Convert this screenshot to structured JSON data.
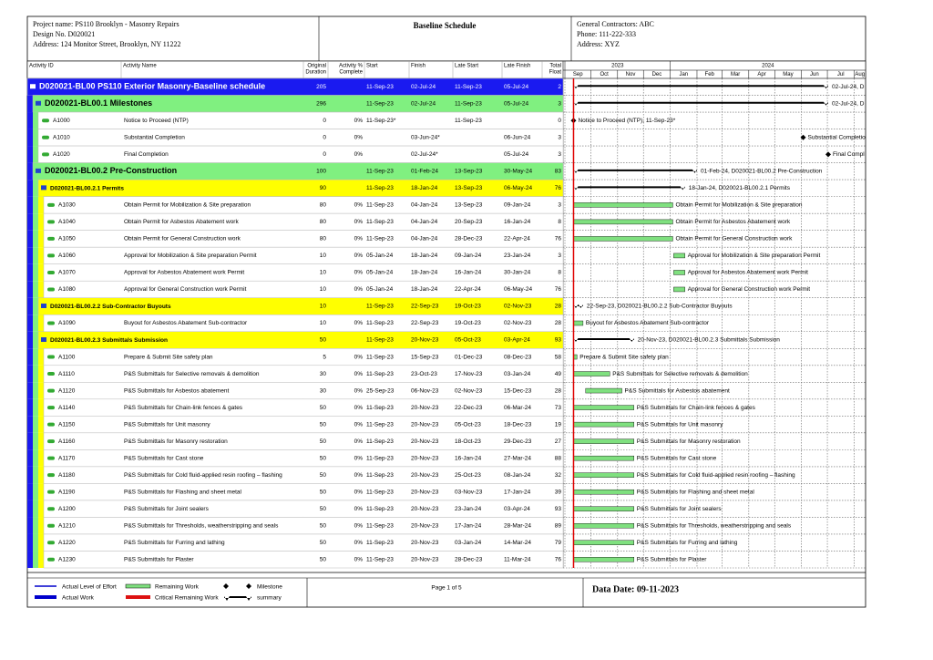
{
  "header": {
    "project_name": "Project name: PS110 Brooklyn - Masonry Repairs",
    "design": "Design No. D020021",
    "address": "Address: 124 Monitor Street, Brooklyn, NY 11222",
    "title": "Baseline Schedule",
    "contractor": "General Contractors: ABC",
    "phone": "Phone: 111-222-333",
    "contractor_address": "Address: XYZ"
  },
  "columns": [
    [
      "Activity ID"
    ],
    [
      "Activity Name"
    ],
    [
      "Original",
      "Duration"
    ],
    [
      "Activity %",
      "Complete"
    ],
    [
      "Start"
    ],
    [
      "Finish"
    ],
    [
      "Late Start"
    ],
    [
      "Late Finish"
    ],
    [
      "Total",
      "Float"
    ]
  ],
  "timeline": {
    "years": [
      "2023",
      "2024"
    ],
    "months": [
      "Sep",
      "Oct",
      "Nov",
      "Dec",
      "Jan",
      "Feb",
      "Mar",
      "Apr",
      "May",
      "Jun",
      "Jul",
      "Aug"
    ]
  },
  "rows": [
    {
      "kind": "project",
      "id": "D020021-BL00",
      "name": "PS110 Exterior Masonry-Baseline schedule",
      "duration": 205,
      "start": "11-Sep-23",
      "finish": "02-Jul-24",
      "late_start": "11-Sep-23",
      "late_finish": "05-Jul-24",
      "float": 2,
      "bar_label": "02-Jul-24, D"
    },
    {
      "kind": "wbs",
      "id": "D020021-BL00.1",
      "name": "Milestones",
      "duration": 296,
      "start": "11-Sep-23",
      "finish": "02-Jul-24",
      "late_start": "11-Sep-23",
      "late_finish": "05-Jul-24",
      "float": 3,
      "bar_label": "02-Jul-24, D"
    },
    {
      "kind": "milestone",
      "id": "A1000",
      "name": "Notice to Proceed (NTP)",
      "duration": 0,
      "pct": "0%",
      "start": "11-Sep-23*",
      "late_start": "11-Sep-23",
      "float": 0,
      "bar_label": "Notice to Proceed (NTP), 11-Sep-23*"
    },
    {
      "kind": "milestone",
      "id": "A1010",
      "name": "Substantial Completion",
      "duration": 0,
      "pct": "0%",
      "finish": "03-Jun-24*",
      "late_finish": "06-Jun-24",
      "float": 3,
      "bar_label": "Substantial Completio"
    },
    {
      "kind": "milestone",
      "id": "A1020",
      "name": "Final Completion",
      "duration": 0,
      "pct": "0%",
      "finish": "02-Jul-24*",
      "late_finish": "05-Jul-24",
      "float": 3,
      "bar_label": "Final Compl"
    },
    {
      "kind": "wbs",
      "id": "D020021-BL00.2",
      "name": "Pre-Construction",
      "duration": 100,
      "start": "11-Sep-23",
      "finish": "01-Feb-24",
      "late_start": "13-Sep-23",
      "late_finish": "30-May-24",
      "float": 83,
      "bar_label": "01-Feb-24, D020021-BL00.2 Pre-Construction"
    },
    {
      "kind": "wbs2",
      "id": "D020021-BL00.2.1",
      "name": "Permits",
      "duration": 90,
      "start": "11-Sep-23",
      "finish": "18-Jan-24",
      "late_start": "13-Sep-23",
      "late_finish": "06-May-24",
      "float": 76,
      "bar_label": "18-Jan-24, D020021-BL00.2.1 Permits"
    },
    {
      "kind": "task",
      "id": "A1030",
      "name": "Obtain Permit for Mobilization & Site preparation",
      "duration": 80,
      "pct": "0%",
      "start": "11-Sep-23",
      "finish": "04-Jan-24",
      "late_start": "13-Sep-23",
      "late_finish": "09-Jan-24",
      "float": 3
    },
    {
      "kind": "task",
      "id": "A1040",
      "name": "Obtain Permit for Asbestos Abatement work",
      "duration": 80,
      "pct": "0%",
      "start": "11-Sep-23",
      "finish": "04-Jan-24",
      "late_start": "20-Sep-23",
      "late_finish": "16-Jan-24",
      "float": 8
    },
    {
      "kind": "task",
      "id": "A1050",
      "name": "Obtain Permit for General Construction work",
      "duration": 80,
      "pct": "0%",
      "start": "11-Sep-23",
      "finish": "04-Jan-24",
      "late_start": "28-Dec-23",
      "late_finish": "22-Apr-24",
      "float": 76
    },
    {
      "kind": "task",
      "id": "A1060",
      "name": "Approval for Mobilization & Site preparation Permit",
      "duration": 10,
      "pct": "0%",
      "start": "05-Jan-24",
      "finish": "18-Jan-24",
      "late_start": "09-Jan-24",
      "late_finish": "23-Jan-24",
      "float": 3
    },
    {
      "kind": "task",
      "id": "A1070",
      "name": "Approval for Asbestos Abatement work Permit",
      "duration": 10,
      "pct": "0%",
      "start": "05-Jan-24",
      "finish": "18-Jan-24",
      "late_start": "16-Jan-24",
      "late_finish": "30-Jan-24",
      "float": 8
    },
    {
      "kind": "task",
      "id": "A1080",
      "name": "Approval for General Construction work Permit",
      "duration": 10,
      "pct": "0%",
      "start": "05-Jan-24",
      "finish": "18-Jan-24",
      "late_start": "22-Apr-24",
      "late_finish": "06-May-24",
      "float": 76
    },
    {
      "kind": "wbs2",
      "id": "D020021-BL00.2.2",
      "name": "Sub-Contractor Buyouts",
      "duration": 10,
      "start": "11-Sep-23",
      "finish": "22-Sep-23",
      "late_start": "19-Oct-23",
      "late_finish": "02-Nov-23",
      "float": 28,
      "bar_label": "22-Sep-23, D020021-BL00.2.2 Sub-Contractor Buyouts"
    },
    {
      "kind": "task",
      "id": "A1090",
      "name": "Buyout for Asbestos Abatement Sub-contractor",
      "duration": 10,
      "pct": "0%",
      "start": "11-Sep-23",
      "finish": "22-Sep-23",
      "late_start": "19-Oct-23",
      "late_finish": "02-Nov-23",
      "float": 28
    },
    {
      "kind": "wbs2",
      "id": "D020021-BL00.2.3",
      "name": "Submittals Submission",
      "duration": 50,
      "start": "11-Sep-23",
      "finish": "20-Nov-23",
      "late_start": "05-Oct-23",
      "late_finish": "03-Apr-24",
      "float": 93,
      "bar_label": "20-Nov-23, D020021-BL00.2.3 Submittals Submission"
    },
    {
      "kind": "task",
      "id": "A1100",
      "name": "Prepare & Submit Site safety plan",
      "duration": 5,
      "pct": "0%",
      "start": "11-Sep-23",
      "finish": "15-Sep-23",
      "late_start": "01-Dec-23",
      "late_finish": "08-Dec-23",
      "float": 58
    },
    {
      "kind": "task",
      "id": "A1110",
      "name": "P&S Submittals for Selective removals & demolition",
      "duration": 30,
      "pct": "0%",
      "start": "11-Sep-23",
      "finish": "23-Oct-23",
      "late_start": "17-Nov-23",
      "late_finish": "03-Jan-24",
      "float": 49
    },
    {
      "kind": "task",
      "id": "A1120",
      "name": "P&S Submittals for Asbestos abatement",
      "duration": 30,
      "pct": "0%",
      "start": "25-Sep-23",
      "finish": "06-Nov-23",
      "late_start": "02-Nov-23",
      "late_finish": "15-Dec-23",
      "float": 28
    },
    {
      "kind": "task",
      "id": "A1140",
      "name": "P&S Submittals for Chain-link fences & gates",
      "duration": 50,
      "pct": "0%",
      "start": "11-Sep-23",
      "finish": "20-Nov-23",
      "late_start": "22-Dec-23",
      "late_finish": "06-Mar-24",
      "float": 73
    },
    {
      "kind": "task",
      "id": "A1150",
      "name": "P&S Submittals for Unit masonry",
      "duration": 50,
      "pct": "0%",
      "start": "11-Sep-23",
      "finish": "20-Nov-23",
      "late_start": "05-Oct-23",
      "late_finish": "18-Dec-23",
      "float": 19
    },
    {
      "kind": "task",
      "id": "A1160",
      "name": "P&S Submittals for Masonry restoration",
      "duration": 50,
      "pct": "0%",
      "start": "11-Sep-23",
      "finish": "20-Nov-23",
      "late_start": "18-Oct-23",
      "late_finish": "29-Dec-23",
      "float": 27
    },
    {
      "kind": "task",
      "id": "A1170",
      "name": "P&S Submittals for Cast stone",
      "duration": 50,
      "pct": "0%",
      "start": "11-Sep-23",
      "finish": "20-Nov-23",
      "late_start": "16-Jan-24",
      "late_finish": "27-Mar-24",
      "float": 88
    },
    {
      "kind": "task",
      "id": "A1180",
      "name": "P&S Submittals for Cold fluid-applied resin roofing – flashing",
      "duration": 50,
      "pct": "0%",
      "start": "11-Sep-23",
      "finish": "20-Nov-23",
      "late_start": "25-Oct-23",
      "late_finish": "08-Jan-24",
      "float": 32
    },
    {
      "kind": "task",
      "id": "A1190",
      "name": "P&S Submittals for Flashing and sheet metal",
      "duration": 50,
      "pct": "0%",
      "start": "11-Sep-23",
      "finish": "20-Nov-23",
      "late_start": "03-Nov-23",
      "late_finish": "17-Jan-24",
      "float": 39
    },
    {
      "kind": "task",
      "id": "A1200",
      "name": "P&S Submittals for Joint sealers",
      "duration": 50,
      "pct": "0%",
      "start": "11-Sep-23",
      "finish": "20-Nov-23",
      "late_start": "23-Jan-24",
      "late_finish": "03-Apr-24",
      "float": 93
    },
    {
      "kind": "task",
      "id": "A1210",
      "name": "P&S Submittals for Thresholds, weatherstripping and seals",
      "duration": 50,
      "pct": "0%",
      "start": "11-Sep-23",
      "finish": "20-Nov-23",
      "late_start": "17-Jan-24",
      "late_finish": "28-Mar-24",
      "float": 89
    },
    {
      "kind": "task",
      "id": "A1220",
      "name": "P&S Submittals for Furring and lathing",
      "duration": 50,
      "pct": "0%",
      "start": "11-Sep-23",
      "finish": "20-Nov-23",
      "late_start": "03-Jan-24",
      "late_finish": "14-Mar-24",
      "float": 79
    },
    {
      "kind": "task",
      "id": "A1230",
      "name": "P&S Submittals for Plaster",
      "duration": 50,
      "pct": "0%",
      "start": "11-Sep-23",
      "finish": "20-Nov-23",
      "late_start": "28-Dec-23",
      "late_finish": "11-Mar-24",
      "float": 76
    }
  ],
  "legend": {
    "level_of_effort": "Actual Level of Effort",
    "actual_work": "Actual Work",
    "remaining_work": "Remaining Work",
    "critical_remaining": "Critical Remaining Work",
    "milestone": "Milestone",
    "summary": "summary"
  },
  "footer": {
    "page": "Page 1 of 5",
    "data_date": "Data Date: 09-11-2023"
  }
}
